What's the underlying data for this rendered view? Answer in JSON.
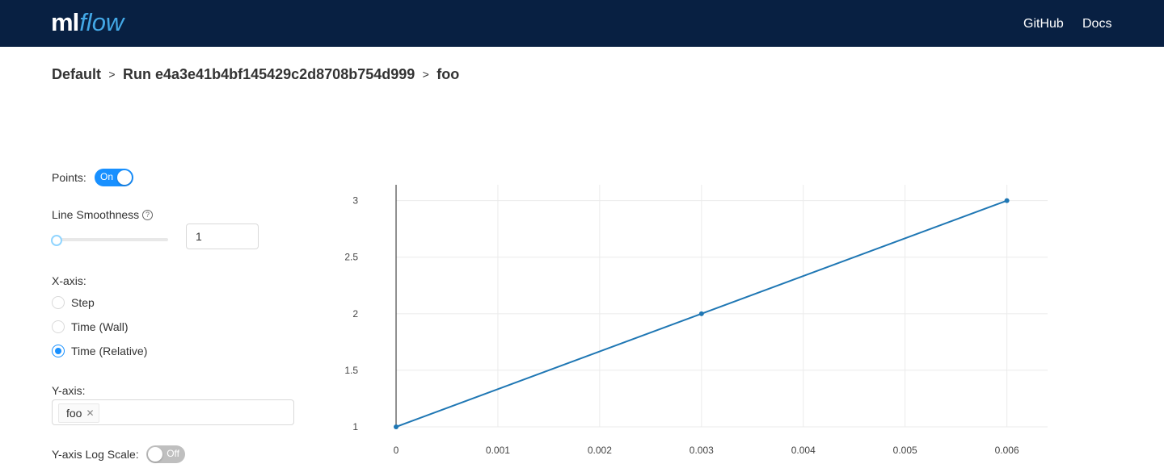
{
  "header": {
    "logo_ml": "ml",
    "logo_flow": "flow",
    "nav": {
      "github": "GitHub",
      "docs": "Docs"
    }
  },
  "breadcrumb": {
    "experiment": "Default",
    "run": "Run e4a3e41b4bf145429c2d8708b754d999",
    "metric": "foo",
    "separator": ">"
  },
  "controls": {
    "points_label": "Points:",
    "points_switch": "On",
    "smoothness_label": "Line Smoothness",
    "smoothness_value": "1",
    "xaxis_label": "X-axis:",
    "xaxis_options": [
      "Step",
      "Time (Wall)",
      "Time (Relative)"
    ],
    "xaxis_selected": "Time (Relative)",
    "yaxis_label": "Y-axis:",
    "yaxis_tag": "foo",
    "ylog_label": "Y-axis Log Scale:",
    "ylog_switch": "Off"
  },
  "colors": {
    "header_bg": "#082042",
    "accent": "#1890ff",
    "line": "#1f77b4"
  },
  "chart_data": {
    "type": "line",
    "series": [
      {
        "name": "foo",
        "x": [
          0,
          0.003,
          0.006
        ],
        "y": [
          1,
          2,
          3
        ]
      }
    ],
    "xlim": [
      0,
      0.0064
    ],
    "ylim": [
      1,
      3.14
    ],
    "xticks": [
      "0",
      "0.001",
      "0.002",
      "0.003",
      "0.004",
      "0.005",
      "0.006"
    ],
    "yticks": [
      "1",
      "1.5",
      "2",
      "2.5",
      "3"
    ],
    "markers": true,
    "grid": true
  }
}
